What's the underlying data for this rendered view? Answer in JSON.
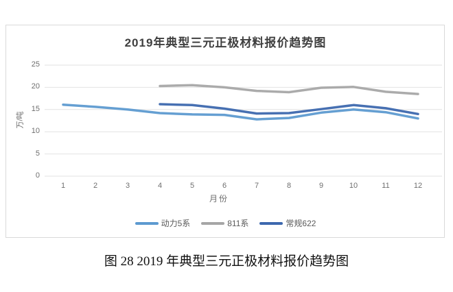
{
  "page": {
    "caption": "图 28 2019 年典型三元正极材料报价趋势图"
  },
  "chart_data": {
    "type": "line",
    "title": "2019年典型三元正极材料报价趋势图",
    "xlabel": "月份",
    "ylabel": "万/吨",
    "x": [
      1,
      2,
      3,
      4,
      5,
      6,
      7,
      8,
      9,
      10,
      11,
      12
    ],
    "y_ticks": [
      0,
      5,
      10,
      15,
      20,
      25
    ],
    "ylim": [
      0,
      25
    ],
    "grid": true,
    "legend_position": "bottom",
    "gridline_color": "#e2e2e2",
    "series": [
      {
        "name": "动力5系",
        "color": "#5d9ad0",
        "values": [
          16.1,
          15.6,
          15.0,
          14.2,
          13.9,
          13.8,
          12.8,
          13.1,
          14.3,
          15.0,
          14.4,
          13.0
        ]
      },
      {
        "name": "811系",
        "color": "#a6a6a6",
        "values": [
          null,
          null,
          null,
          20.3,
          20.5,
          20.0,
          19.2,
          18.9,
          19.9,
          20.1,
          19.0,
          18.5
        ]
      },
      {
        "name": "常规622",
        "color": "#3d68ae",
        "values": [
          null,
          null,
          null,
          16.2,
          16.0,
          15.2,
          14.1,
          14.2,
          15.1,
          16.0,
          15.3,
          14.0
        ]
      }
    ]
  }
}
